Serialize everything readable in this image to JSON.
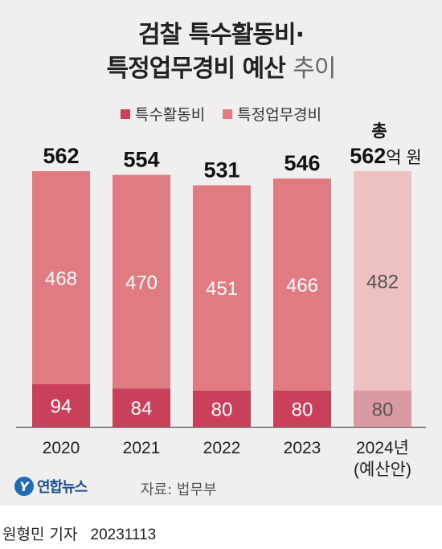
{
  "title": {
    "line1": "검찰 특수활동비·",
    "line2_bold": "특정업무경비 예산",
    "line2_light": "추이"
  },
  "legend": {
    "special_activity": "특수활동비",
    "specific_work": "특정업무경비"
  },
  "colors": {
    "special_activity": "#c8405a",
    "specific_work": "#e07b82",
    "special_activity_budget": "#d99aa3",
    "specific_work_budget": "#edc0c2"
  },
  "chart_data": {
    "type": "bar",
    "stacked": true,
    "categories": [
      "2020",
      "2021",
      "2022",
      "2023",
      "2024년\n(예산안)"
    ],
    "series": [
      {
        "name": "특수활동비",
        "values": [
          94,
          84,
          80,
          80,
          80
        ]
      },
      {
        "name": "특정업무경비",
        "values": [
          468,
          470,
          451,
          466,
          482
        ]
      }
    ],
    "totals": [
      "562",
      "554",
      "531",
      "546",
      "562"
    ],
    "total_prefix_last": "총",
    "total_suffix_last": "억 원",
    "ylim": [
      0,
      562
    ]
  },
  "footer": {
    "logo_mark": "Y",
    "logo_text": "연합뉴스",
    "source": "자료: 법무부"
  },
  "byline": {
    "author": "원형민 기자",
    "date": "20231113"
  }
}
